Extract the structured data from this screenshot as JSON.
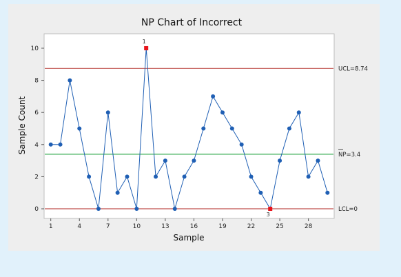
{
  "chart_data": {
    "type": "line",
    "title": "NP Chart of Incorrect",
    "xlabel": "Sample",
    "ylabel": "Sample Count",
    "xlim": [
      0.3,
      30.7
    ],
    "ylim": [
      -0.6,
      10.9
    ],
    "x_ticks": [
      1,
      4,
      7,
      10,
      13,
      16,
      19,
      22,
      25,
      28
    ],
    "y_ticks": [
      0,
      2,
      4,
      6,
      8,
      10
    ],
    "grid": false,
    "legend": "none",
    "series": [
      {
        "color": "#1f5fb4",
        "x": [
          1,
          2,
          3,
          4,
          5,
          6,
          7,
          8,
          9,
          10,
          11,
          12,
          13,
          14,
          15,
          16,
          17,
          18,
          19,
          20,
          21,
          22,
          23,
          24,
          25,
          26,
          27,
          28,
          29,
          30
        ],
        "values": [
          4,
          4,
          8,
          5,
          2,
          0,
          6,
          1,
          2,
          0,
          10,
          2,
          3,
          0,
          2,
          3,
          5,
          7,
          6,
          5,
          4,
          2,
          1,
          0,
          3,
          5,
          6,
          2,
          3,
          1
        ]
      }
    ],
    "reference_lines": [
      {
        "name": "UCL",
        "label": "UCL=8.74",
        "value": 8.74,
        "color": "#c0504d"
      },
      {
        "name": "center",
        "label": "NP=3.4",
        "value": 3.4,
        "color": "#2ea84a"
      },
      {
        "name": "LCL",
        "label": "LCL=0",
        "value": 0,
        "color": "#c0504d"
      }
    ],
    "flagged_points": [
      {
        "x": 11,
        "y": 10,
        "label": "1",
        "color": "#e8141b"
      },
      {
        "x": 24,
        "y": 0,
        "label": "3",
        "color": "#e8141b"
      }
    ]
  }
}
